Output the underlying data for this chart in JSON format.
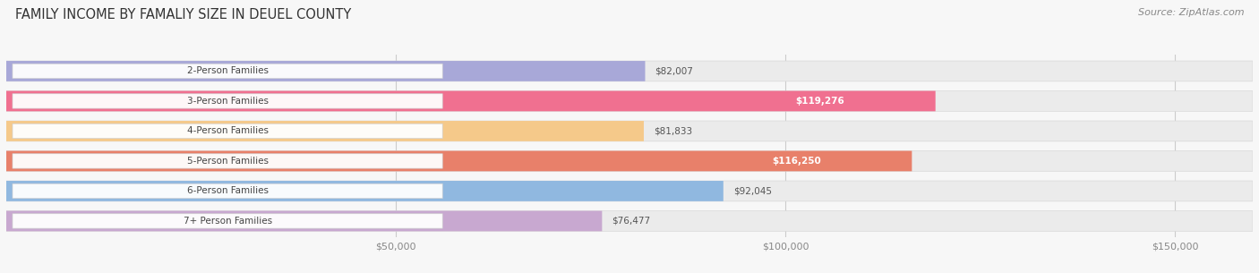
{
  "title": "FAMILY INCOME BY FAMALIY SIZE IN DEUEL COUNTY",
  "source": "Source: ZipAtlas.com",
  "categories": [
    "2-Person Families",
    "3-Person Families",
    "4-Person Families",
    "5-Person Families",
    "6-Person Families",
    "7+ Person Families"
  ],
  "values": [
    82007,
    119276,
    81833,
    116250,
    92045,
    76477
  ],
  "bar_colors": [
    "#a8a8d8",
    "#f07090",
    "#f5c98a",
    "#e8806a",
    "#90b8e0",
    "#c8a8d0"
  ],
  "bar_bg_color": "#ebebeb",
  "label_colors_white": [
    false,
    true,
    false,
    true,
    false,
    false
  ],
  "value_labels": [
    "$82,007",
    "$119,276",
    "$81,833",
    "$116,250",
    "$92,045",
    "$76,477"
  ],
  "x_ticks": [
    50000,
    100000,
    150000
  ],
  "x_tick_labels": [
    "$50,000",
    "$100,000",
    "$150,000"
  ],
  "xmax": 160000,
  "background_color": "#f7f7f7",
  "title_fontsize": 10.5,
  "source_fontsize": 8,
  "bar_label_fontsize": 7.5,
  "value_label_fontsize": 7.5
}
